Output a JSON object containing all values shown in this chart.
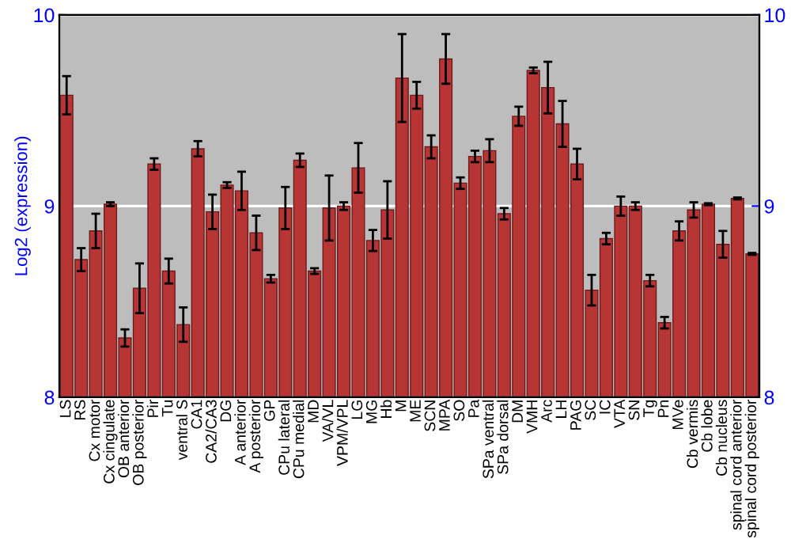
{
  "chart_data": {
    "type": "bar",
    "ylabel": "Log2 (expression)",
    "categories": [
      "LS",
      "RS",
      "Cx motor",
      "Cx cingulate",
      "OB anterior",
      "OB posterior",
      "Pir",
      "Tu",
      "ventral S",
      "CA1",
      "CA2/CA3",
      "DG",
      "A anterior",
      "A posterior",
      "GP",
      "CPu lateral",
      "CPu medial",
      "MD",
      "VA/VL",
      "VPM/VPL",
      "LG",
      "MG",
      "Hb",
      "M",
      "ME",
      "SCN",
      "MPA",
      "SO",
      "Pa",
      "SPa ventral",
      "SPa dorsal",
      "DM",
      "VMH",
      "Arc",
      "LH",
      "PAG",
      "SC",
      "IC",
      "VTA",
      "SN",
      "Tg",
      "Pn",
      "MVe",
      "Cb vermis",
      "Cb lobe",
      "Cb nucleus",
      "spinal cord anterior",
      "spinal cord posterior"
    ],
    "values": [
      9.58,
      8.72,
      8.87,
      9.01,
      8.31,
      8.57,
      9.22,
      8.66,
      8.38,
      9.3,
      8.97,
      9.11,
      9.08,
      8.86,
      8.62,
      8.99,
      9.24,
      8.66,
      8.99,
      9.0,
      9.2,
      8.82,
      8.98,
      9.67,
      9.58,
      9.31,
      9.77,
      9.12,
      9.26,
      9.29,
      8.96,
      9.47,
      9.71,
      9.62,
      9.43,
      9.22,
      8.56,
      8.83,
      9.0,
      9.0,
      8.61,
      8.39,
      8.87,
      8.98,
      9.01,
      8.8,
      9.04,
      8.75
    ],
    "errors": [
      0.1,
      0.06,
      0.09,
      0.01,
      0.045,
      0.13,
      0.03,
      0.065,
      0.09,
      0.04,
      0.09,
      0.015,
      0.1,
      0.09,
      0.02,
      0.11,
      0.035,
      0.015,
      0.17,
      0.02,
      0.13,
      0.055,
      0.15,
      0.23,
      0.07,
      0.06,
      0.13,
      0.03,
      0.03,
      0.06,
      0.03,
      0.05,
      0.015,
      0.135,
      0.12,
      0.08,
      0.08,
      0.03,
      0.05,
      0.02,
      0.03,
      0.03,
      0.05,
      0.04,
      0.005,
      0.07,
      0.005,
      0.005
    ],
    "color": "#b83535",
    "ylim": [
      8,
      10
    ],
    "yticks": [
      8,
      9,
      10
    ],
    "y2lim": [
      8,
      10
    ],
    "y2ticks": [
      8,
      9,
      10
    ],
    "grid": "y"
  }
}
